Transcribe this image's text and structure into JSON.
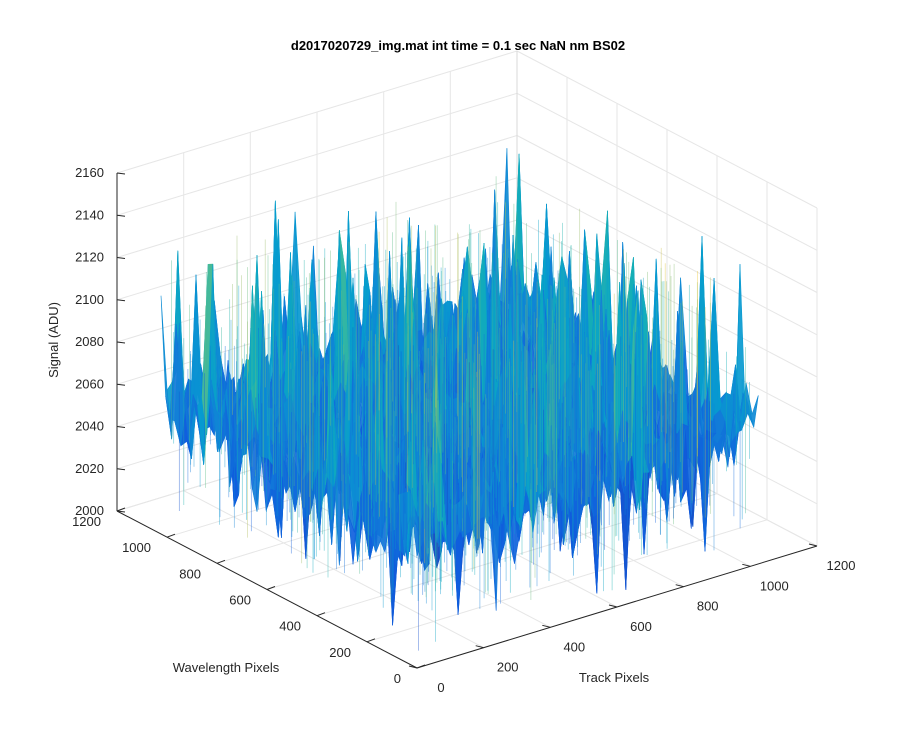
{
  "chart_data": {
    "type": "surface",
    "title": "d2017020729_img.mat int time = 0.1 sec  NaN nm BS02",
    "xlabel": "Track Pixels",
    "ylabel": "Wavelength Pixels",
    "zlabel": "Signal (ADU)",
    "xlim": [
      0,
      1200
    ],
    "ylim": [
      0,
      1200
    ],
    "zlim": [
      2000,
      2160
    ],
    "xticks": [
      "0",
      "200",
      "400",
      "600",
      "800",
      "1000",
      "1200"
    ],
    "yticks": [
      "0",
      "200",
      "400",
      "600",
      "800",
      "1000",
      "1200"
    ],
    "zticks": [
      "2000",
      "2020",
      "2040",
      "2060",
      "2080",
      "2100",
      "2120",
      "2140",
      "2160"
    ],
    "grid": true,
    "colormap": "parula",
    "colors": {
      "low": "#0072BD",
      "mid": "#2AB5AE",
      "high": "#E6C735",
      "axis": "#262626",
      "grid": "#E6E6E6"
    },
    "surface": {
      "x_extent": [
        0,
        1024
      ],
      "y_extent": [
        0,
        1024
      ],
      "mean_level": 2060,
      "noise_min": 2005,
      "noise_max": 2145
    }
  }
}
